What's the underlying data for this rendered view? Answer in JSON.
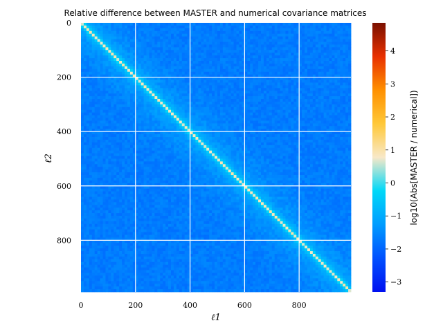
{
  "chart_data": {
    "type": "heatmap",
    "title": "Relative difference between MASTER and numerical covariance matrices",
    "xlabel": "ℓ1",
    "ylabel": "ℓ2",
    "x_range": [
      0,
      990
    ],
    "y_range": [
      0,
      990
    ],
    "y_inverted": true,
    "x_ticks": [
      0,
      200,
      400,
      600,
      800
    ],
    "y_ticks": [
      0,
      200,
      400,
      600,
      800
    ],
    "grid": true,
    "grid_color": "#ffffff",
    "colorbar": {
      "label": "log10(Abs[MASTER / numerical])",
      "range": [
        -3.3,
        4.85
      ],
      "ticks": [
        -3,
        -2,
        -1,
        0,
        1,
        2,
        3,
        4
      ],
      "colormap": [
        "#0010f0",
        "#0050ff",
        "#009cff",
        "#00d8f8",
        "#f8e8c8",
        "#ffc838",
        "#ff9000",
        "#e83000",
        "#7a1000"
      ]
    },
    "structure": {
      "off_diagonal_log_ratio": -1.7,
      "near_diagonal_log_ratio": -0.9,
      "diagonal_log_ratio": 0.8
    }
  }
}
